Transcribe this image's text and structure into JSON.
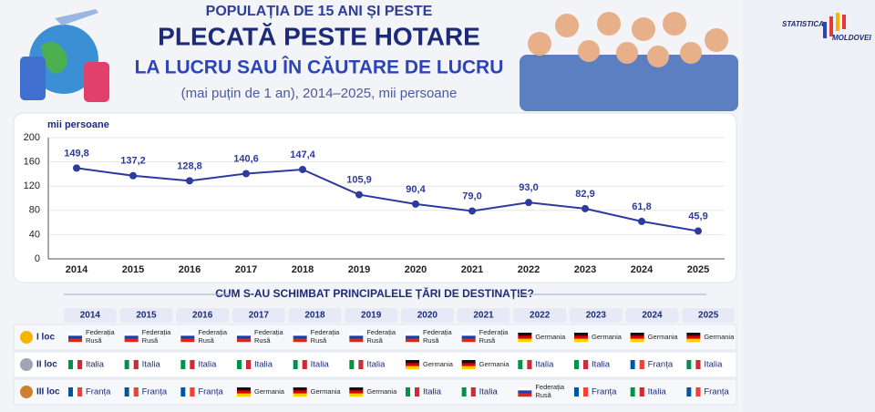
{
  "header": {
    "line1": "POPULAȚIA DE 15 ANI ȘI PESTE",
    "line2": "PLECATĂ PESTE HOTARE",
    "line3": "LA LUCRU SAU ÎN CĂUTARE DE LUCRU",
    "subtitle": "(mai puțin de 1 an), 2014–2025, mii persoane"
  },
  "logo": {
    "top": "STATISTICA",
    "bottom": "MOLDOVEI"
  },
  "chart_data": {
    "type": "line",
    "y_label": "mii persoane",
    "categories": [
      "2014",
      "2015",
      "2016",
      "2017",
      "2018",
      "2019",
      "2020",
      "2021",
      "2022",
      "2023",
      "2024",
      "2025"
    ],
    "values": [
      149.8,
      137.2,
      128.8,
      140.6,
      147.4,
      105.9,
      90.4,
      79.0,
      93.0,
      82.9,
      61.8,
      45.9
    ],
    "value_labels": [
      "149,8",
      "137,2",
      "128,8",
      "140,6",
      "147,4",
      "105,9",
      "90,4",
      "79,0",
      "93,0",
      "82,9",
      "61,8",
      "45,9"
    ],
    "color": "#2d3a9e",
    "ylim": [
      0,
      200
    ],
    "yticks": [
      0,
      40,
      80,
      120,
      160,
      200
    ],
    "grid": true
  },
  "table": {
    "title": "CUM S-AU SCHIMBAT PRINCIPALELE ȚĂRI DE DESTINAȚIE?",
    "rows": [
      {
        "label": "I loc",
        "cells": [
          "Federația Rusă",
          "Federația Rusă",
          "Federația Rusă",
          "Federația Rusă",
          "Federația Rusă",
          "Federația Rusă",
          "Federația Rusă",
          "Federația Rusă",
          "Germania",
          "Germania",
          "Germania",
          "Germania"
        ]
      },
      {
        "label": "II loc",
        "cells": [
          "Italia",
          "Italia",
          "Italia",
          "Italia",
          "Italia",
          "Italia",
          "Germania",
          "Germania",
          "Italia",
          "Italia",
          "Franța",
          "Italia"
        ]
      },
      {
        "label": "III loc",
        "cells": [
          "Franța",
          "Franța",
          "Franța",
          "Germania",
          "Germania",
          "Germania",
          "Italia",
          "Italia",
          "Federația Rusă",
          "Franța",
          "Italia",
          "Franța"
        ]
      }
    ]
  }
}
